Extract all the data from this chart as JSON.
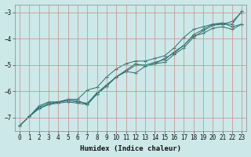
{
  "background_color": "#cce8e8",
  "grid_color": "#cc8888",
  "line_color": "#2a7070",
  "xlabel": "Humidex (Indice chaleur)",
  "ylim": [
    -7.5,
    -2.7
  ],
  "xlim": [
    -0.5,
    23.5
  ],
  "yticks": [
    -7,
    -6,
    -5,
    -4,
    -3
  ],
  "series": [
    {
      "x": [
        0,
        1,
        2,
        3,
        4,
        5,
        6,
        7,
        8,
        9,
        10,
        11,
        12,
        13,
        14,
        15,
        16,
        17,
        18,
        19,
        20,
        21,
        22,
        23
      ],
      "y": [
        -7.3,
        -6.95,
        -6.6,
        -6.45,
        -6.4,
        -6.35,
        -6.4,
        -6.45,
        -6.05,
        -5.75,
        -5.45,
        -5.2,
        -4.95,
        -5.05,
        -4.95,
        -4.9,
        -4.6,
        -4.35,
        -3.95,
        -3.7,
        -3.5,
        -3.45,
        -3.35,
        -3.0
      ]
    },
    {
      "x": [
        0,
        1,
        2,
        3,
        4,
        5,
        6,
        7,
        8,
        9,
        10,
        11,
        12,
        13,
        14,
        15,
        16,
        17,
        18,
        19,
        20,
        21,
        22,
        23
      ],
      "y": [
        -7.3,
        -6.95,
        -6.65,
        -6.5,
        -6.45,
        -6.4,
        -6.45,
        -6.5,
        -6.1,
        -5.8,
        -5.45,
        -5.25,
        -5.0,
        -5.0,
        -4.9,
        -4.8,
        -4.5,
        -4.25,
        -3.85,
        -3.65,
        -3.45,
        -3.4,
        -3.55,
        -3.45
      ]
    },
    {
      "x": [
        0,
        1,
        2,
        3,
        4,
        5,
        6,
        7,
        8,
        9,
        10,
        11,
        12,
        13,
        14,
        15,
        16,
        17,
        18,
        19,
        20,
        21,
        22,
        23
      ],
      "y": [
        -7.3,
        -6.95,
        -6.65,
        -6.5,
        -6.4,
        -6.35,
        -6.35,
        -6.5,
        -6.1,
        -5.8,
        -5.45,
        -5.25,
        -5.3,
        -5.05,
        -4.95,
        -4.75,
        -4.55,
        -4.25,
        -3.9,
        -3.8,
        -3.6,
        -3.55,
        -3.65,
        -3.45
      ]
    },
    {
      "x": [
        1,
        2,
        3,
        4,
        5,
        6,
        7,
        8,
        9,
        10,
        11,
        12,
        13,
        14,
        15,
        16,
        17,
        18,
        19,
        20,
        21,
        22,
        23
      ],
      "y": [
        -6.95,
        -6.55,
        -6.4,
        -6.4,
        -6.3,
        -6.3,
        -5.95,
        -5.85,
        -5.45,
        -5.15,
        -4.95,
        -4.85,
        -4.85,
        -4.75,
        -4.65,
        -4.35,
        -3.95,
        -3.65,
        -3.55,
        -3.45,
        -3.45,
        -3.45,
        -2.95
      ]
    }
  ]
}
